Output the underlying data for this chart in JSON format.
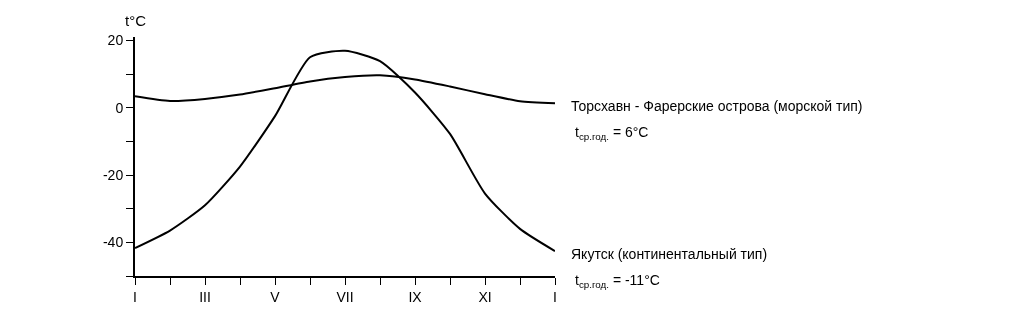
{
  "chart_data": {
    "type": "line",
    "ylabel": "t°C",
    "categories": [
      "I",
      null,
      "III",
      null,
      "V",
      null,
      "VII",
      null,
      "IX",
      null,
      "XI",
      null,
      "I"
    ],
    "series": [
      {
        "name": "Торсхавн - Фарерские острова (морской тип)",
        "color": "#000000",
        "values": [
          3.4,
          2.0,
          2.6,
          3.9,
          5.8,
          7.8,
          9.1,
          9.6,
          8.4,
          6.3,
          4.0,
          1.9,
          1.3
        ]
      },
      {
        "name": "Якутск (континентальный тип)",
        "color": "#000000",
        "values": [
          -41.7,
          -36.5,
          -29,
          -17.5,
          -2.5,
          15,
          16.9,
          13.8,
          4.5,
          -7.8,
          -25.5,
          -36,
          -42.6
        ]
      }
    ],
    "annotations": [
      "t$_{ср.год.}$ = 6°C",
      "t$_{ср.год.}$ = -11°C"
    ],
    "ylim": [
      -50,
      21
    ],
    "yticks": [
      {
        "value": -50,
        "label": null
      },
      -40,
      {
        "value": -30,
        "label": null
      },
      -20,
      {
        "value": -10,
        "label": null
      },
      0,
      {
        "value": 10,
        "label": null
      },
      20
    ],
    "grid": false,
    "legend": false,
    "marker": "none",
    "line_style": "solid"
  }
}
